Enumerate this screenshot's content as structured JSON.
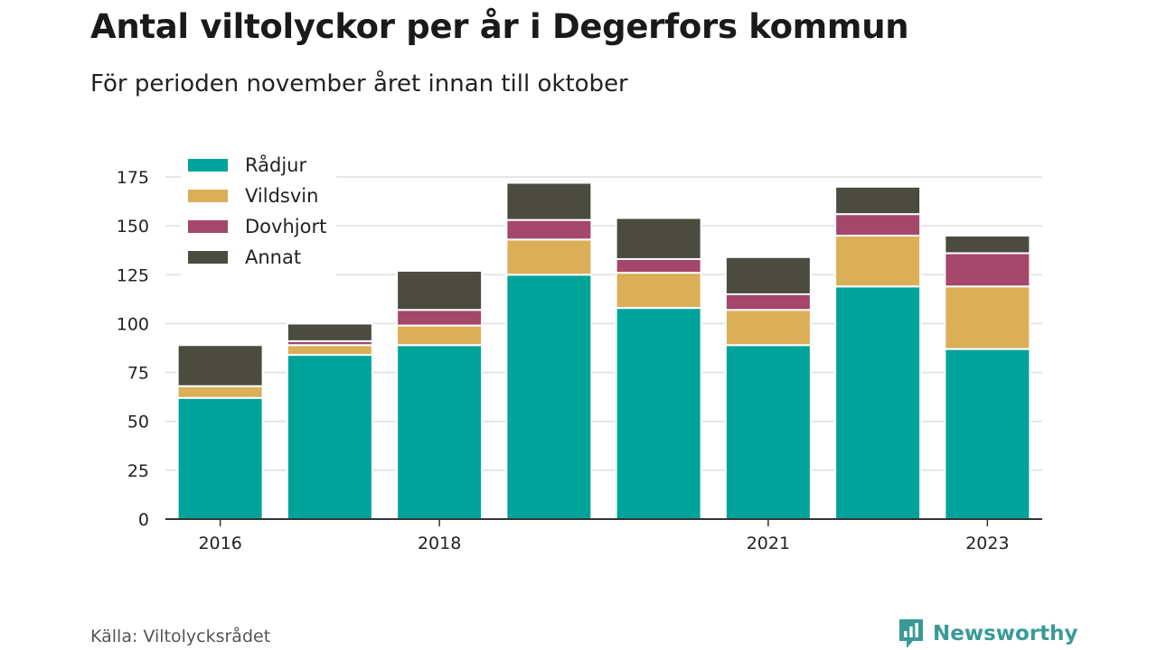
{
  "title": "Antal viltolyckor per år i Degerfors kommun",
  "subtitle": "För perioden november året innan till oktober",
  "source": "Källa: Viltolycksrådet",
  "brand": {
    "name": "Newsworthy",
    "color": "#3a9a96",
    "icon": "newsworthy-logo-icon"
  },
  "chart_data": {
    "type": "bar",
    "stacked": true,
    "categories": [
      "2016",
      "2017",
      "2018",
      "2019",
      "2020",
      "2021",
      "2022",
      "2023"
    ],
    "tick_labels": [
      "2016",
      "",
      "2018",
      "",
      "",
      "2021",
      "",
      "2023"
    ],
    "series": [
      {
        "name": "Rådjur",
        "color": "#00a39a",
        "values": [
          62,
          84,
          89,
          125,
          108,
          89,
          119,
          87
        ]
      },
      {
        "name": "Vildsvin",
        "color": "#dbae58",
        "values": [
          6,
          5,
          10,
          18,
          18,
          18,
          26,
          32
        ]
      },
      {
        "name": "Dovhjort",
        "color": "#a5466b",
        "values": [
          0,
          2,
          8,
          10,
          7,
          8,
          11,
          17
        ]
      },
      {
        "name": "Annat",
        "color": "#4b4c3f",
        "values": [
          21,
          9,
          20,
          19,
          21,
          19,
          14,
          9
        ]
      }
    ],
    "ylim": [
      0,
      175
    ],
    "yticks": [
      0,
      25,
      50,
      75,
      100,
      125,
      150,
      175
    ],
    "grid": true,
    "legend": "top-left",
    "xlabel": "",
    "ylabel": ""
  }
}
